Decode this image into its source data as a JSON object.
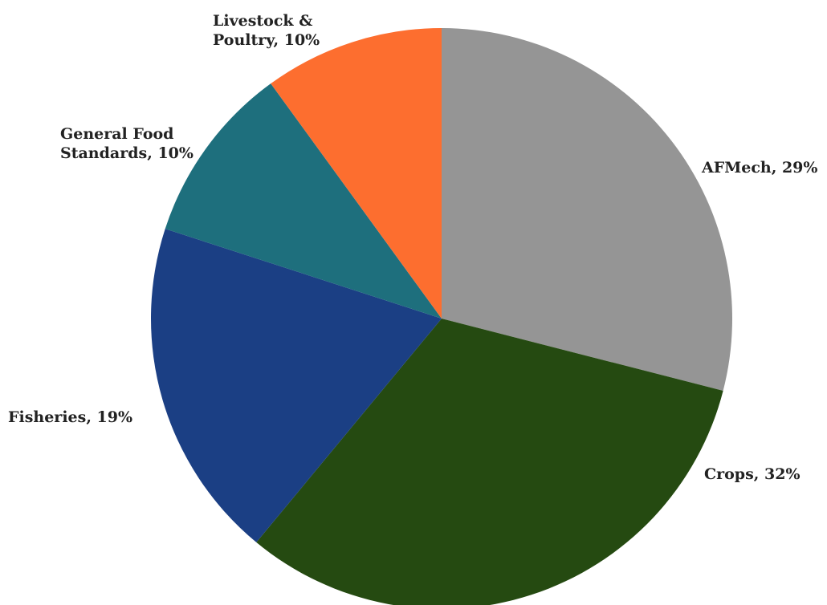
{
  "chart_data": {
    "type": "pie",
    "title": "",
    "slices": [
      {
        "label": "AFMech, 29%",
        "name": "AFMech",
        "value": 29,
        "color": "#959595"
      },
      {
        "label": "Crops, 32%",
        "name": "Crops",
        "value": 32,
        "color": "#254a11"
      },
      {
        "label": "Fisheries, 19%",
        "name": "Fisheries",
        "value": 19,
        "color": "#1b3f84"
      },
      {
        "label": "General Food Standards, 10%",
        "name": "General Food Standards",
        "value": 10,
        "color": "#1e6f7d"
      },
      {
        "label": "Livestock & Poultry, 10%",
        "name": "Livestock & Poultry",
        "value": 10,
        "color": "#fd6e2f"
      }
    ],
    "start": "12 o'clock",
    "direction": "clockwise",
    "legend": "none"
  }
}
